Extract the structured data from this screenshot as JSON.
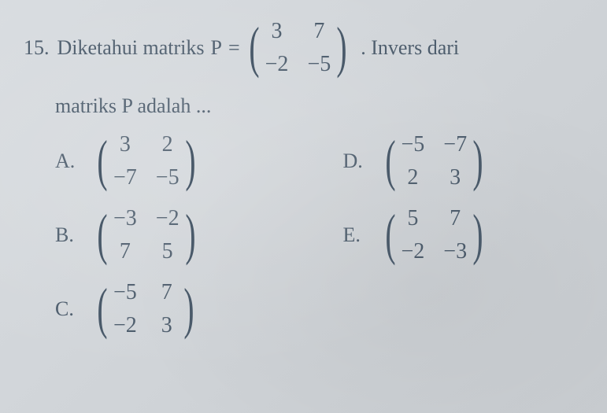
{
  "question": {
    "number": "15.",
    "text_before": "Diketahui matriks",
    "variable": "P",
    "equals": "=",
    "text_after": ". Invers dari",
    "sub_text": "matriks P adalah ...",
    "matrix_P": {
      "a": "3",
      "b": "7",
      "c": "−2",
      "d": "−5"
    }
  },
  "options": {
    "A": {
      "letter": "A.",
      "m": {
        "a": "3",
        "b": "2",
        "c": "−7",
        "d": "−5"
      }
    },
    "B": {
      "letter": "B.",
      "m": {
        "a": "−3",
        "b": "−2",
        "c": "7",
        "d": "5"
      }
    },
    "C": {
      "letter": "C.",
      "m": {
        "a": "−5",
        "b": "7",
        "c": "−2",
        "d": "3"
      }
    },
    "D": {
      "letter": "D.",
      "m": {
        "a": "−5",
        "b": "−7",
        "c": "2",
        "d": "3"
      }
    },
    "E": {
      "letter": "E.",
      "m": {
        "a": "5",
        "b": "7",
        "c": "−2",
        "d": "−3"
      }
    }
  },
  "style": {
    "font_color": "#4a5a6a",
    "bg_color": "#d4d8dc",
    "question_fontsize": 26,
    "matrix_fontsize": 28,
    "paren_fontsize": 72
  }
}
